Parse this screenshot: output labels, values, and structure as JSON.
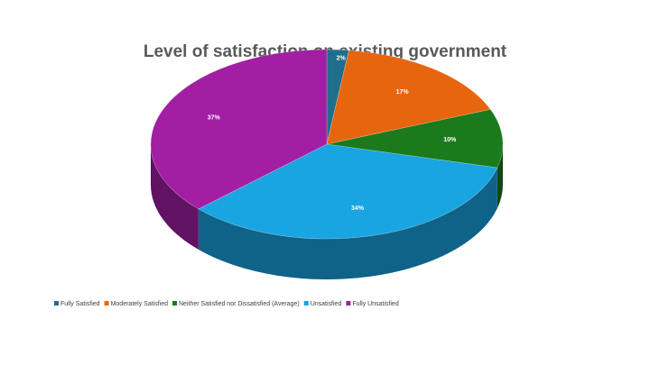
{
  "chart_data": {
    "type": "pie",
    "title": "Level of satisfaction on existing government",
    "categories": [
      "Fully Satisfied",
      "Moderately Satisfied",
      "Neither Satisfied nor Dissatisfied (Average)",
      "Unsatisfied",
      "Fully Unsatisfied"
    ],
    "values": [
      2,
      17,
      10,
      34,
      37
    ],
    "value_labels": [
      "2%",
      "17%",
      "10%",
      "34%",
      "37%"
    ],
    "colors": [
      "#1f6e8c",
      "#e8650f",
      "#1b7a1b",
      "#19a4e2",
      "#a21ea3"
    ],
    "legend": "bottom"
  }
}
